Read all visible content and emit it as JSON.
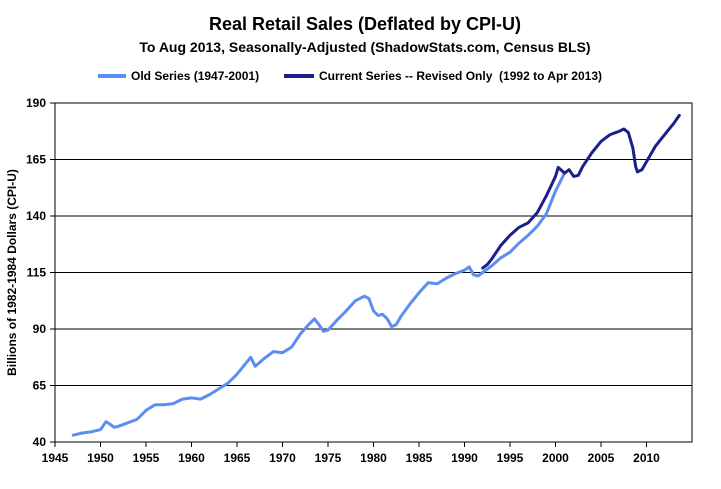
{
  "chart_data": {
    "type": "line",
    "title": "Real Retail Sales (Deflated by CPI-U)",
    "subtitle": "To Aug 2013, Seasonally-Adjusted (ShadowStats.com, Census BLS)",
    "xlabel": "",
    "ylabel": "Billions of 1982-1984 Dollars (CPI-U)",
    "xlim": [
      1945,
      2015
    ],
    "ylim": [
      40,
      190
    ],
    "x_ticks": [
      1945,
      1950,
      1955,
      1960,
      1965,
      1970,
      1975,
      1980,
      1985,
      1990,
      1995,
      2000,
      2005,
      2010
    ],
    "y_ticks": [
      40,
      65,
      90,
      115,
      140,
      165,
      190
    ],
    "grid": "horizontal",
    "legend_position": "top",
    "series": [
      {
        "name": "Old Series (1947-2001)",
        "color": "#5b8ef0",
        "x": [
          1947.0,
          1948.0,
          1949.0,
          1950.0,
          1950.6,
          1951.0,
          1951.5,
          1952.0,
          1953.0,
          1954.0,
          1955.0,
          1956.0,
          1957.0,
          1958.0,
          1959.0,
          1960.0,
          1961.0,
          1962.0,
          1963.0,
          1964.0,
          1965.0,
          1966.0,
          1966.5,
          1967.0,
          1968.0,
          1969.0,
          1970.0,
          1971.0,
          1972.0,
          1973.0,
          1973.5,
          1974.0,
          1974.5,
          1975.0,
          1976.0,
          1977.0,
          1978.0,
          1979.0,
          1979.5,
          1980.0,
          1980.5,
          1981.0,
          1981.5,
          1982.0,
          1982.5,
          1983.0,
          1984.0,
          1985.0,
          1986.0,
          1987.0,
          1988.0,
          1989.0,
          1990.0,
          1990.5,
          1991.0,
          1991.5,
          1992.0,
          1993.0,
          1994.0,
          1995.0,
          1996.0,
          1997.0,
          1998.0,
          1999.0,
          2000.0,
          2001.0
        ],
        "values": [
          43.0,
          44.0,
          44.5,
          45.5,
          49.0,
          48.0,
          46.5,
          47.0,
          48.5,
          50.0,
          54.0,
          56.5,
          56.5,
          57.0,
          59.0,
          59.5,
          59.0,
          61.0,
          63.5,
          66.0,
          70.0,
          75.0,
          77.5,
          73.5,
          77.0,
          80.0,
          79.5,
          82.0,
          88.0,
          92.5,
          94.5,
          92.0,
          89.0,
          89.5,
          94.0,
          98.0,
          102.5,
          104.5,
          103.5,
          98.0,
          96.0,
          96.5,
          94.5,
          91.0,
          92.0,
          95.5,
          101.0,
          106.0,
          110.5,
          110.0,
          112.5,
          114.5,
          116.0,
          117.5,
          114.0,
          113.5,
          115.0,
          118.0,
          121.5,
          124.0,
          128.0,
          131.5,
          135.5,
          141.0,
          151.0,
          159.0
        ]
      },
      {
        "name": "Current Series -- Revised Only  (1992 to Apr 2013)",
        "color": "#1a1f8c",
        "x": [
          1992.0,
          1992.5,
          1993.0,
          1994.0,
          1995.0,
          1996.0,
          1997.0,
          1998.0,
          1999.0,
          2000.0,
          2000.3,
          2001.0,
          2001.5,
          2002.0,
          2002.5,
          2003.0,
          2004.0,
          2005.0,
          2006.0,
          2007.0,
          2007.5,
          2008.0,
          2008.5,
          2008.8,
          2009.0,
          2009.5,
          2010.0,
          2011.0,
          2012.0,
          2013.0,
          2013.6
        ],
        "values": [
          117.0,
          118.5,
          121.0,
          127.0,
          131.5,
          135.0,
          137.0,
          141.5,
          149.0,
          157.5,
          161.5,
          159.0,
          160.5,
          157.5,
          158.0,
          162.0,
          168.0,
          173.0,
          176.0,
          177.5,
          178.5,
          177.0,
          170.0,
          162.0,
          159.5,
          160.5,
          164.0,
          171.0,
          176.0,
          181.0,
          184.5
        ]
      }
    ]
  }
}
